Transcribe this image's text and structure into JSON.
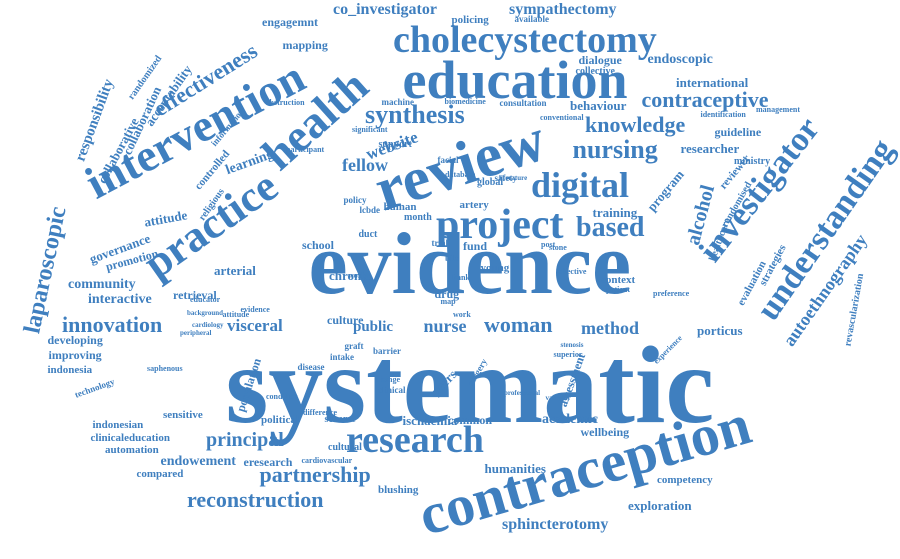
{
  "colors": {
    "word": "#3f7fbf",
    "background": "#ffffff"
  },
  "words": [
    "systematic",
    "evidence",
    "review",
    "contraception",
    "education",
    "intervention",
    "health",
    "cholecystectomy",
    "practice",
    "project",
    "digital",
    "research",
    "understanding",
    "investigator",
    "synthesis",
    "nursing",
    "knowledge",
    "contraceptive",
    "based",
    "innovation",
    "laparoscopic",
    "partnership",
    "reconstruction",
    "effectiveness",
    "alcohol",
    "autoethnography",
    "sphincterotomy",
    "principal",
    "fellow",
    "woman",
    "nurse",
    "method",
    "community",
    "interactive",
    "co_investigator",
    "sympathectomy",
    "endoscopic",
    "website",
    "visceral",
    "public",
    "ischaemia",
    "academic",
    "common",
    "training",
    "program",
    "arterial",
    "chronic",
    "fund",
    "culture",
    "young",
    "drug",
    "international",
    "behaviour",
    "researcher",
    "guideline",
    "context",
    "porticus",
    "exploration",
    "competency",
    "humanities",
    "wellbeing",
    "endowement",
    "eresearch",
    "automation",
    "compared",
    "clinicaleducation",
    "indonesian",
    "sensitive",
    "population",
    "political",
    "scheme",
    "cultural",
    "blushing",
    "developing",
    "improving",
    "indonesia",
    "technology",
    "responsibility",
    "collaborative",
    "collaboration",
    "acceptability",
    "engagemnt",
    "mapping",
    "controlled",
    "learning",
    "attitude",
    "governance",
    "promotion",
    "retrieval",
    "religious",
    "educator",
    "revascularization",
    "strategies",
    "evaluation",
    "randomised",
    "healthcare",
    "reviewer",
    "ministry",
    "management",
    "identification",
    "dialogue",
    "collective",
    "policing",
    "available",
    "randomized",
    "information",
    "machine",
    "biomedicine",
    "consultation",
    "significant",
    "conventional",
    "support",
    "participant",
    "facial",
    "database",
    "global",
    "safety",
    "human",
    "artery",
    "policy",
    "lcbde",
    "month",
    "duct",
    "school",
    "trial",
    "bile",
    "bank",
    "map",
    "work",
    "post",
    "stone",
    "world",
    "graft",
    "intake",
    "peers",
    "change",
    "clinical",
    "surgery",
    "assessment",
    "patient",
    "experience",
    "preference",
    "effective",
    "superior",
    "disease",
    "saphenous",
    "peripheral",
    "cardiology",
    "background",
    "cardiovascular",
    "difference",
    "barrier",
    "condition",
    "stenosis",
    "literature",
    "evidence",
    "attitude",
    "vascular",
    "obstruction",
    "professional"
  ]
}
